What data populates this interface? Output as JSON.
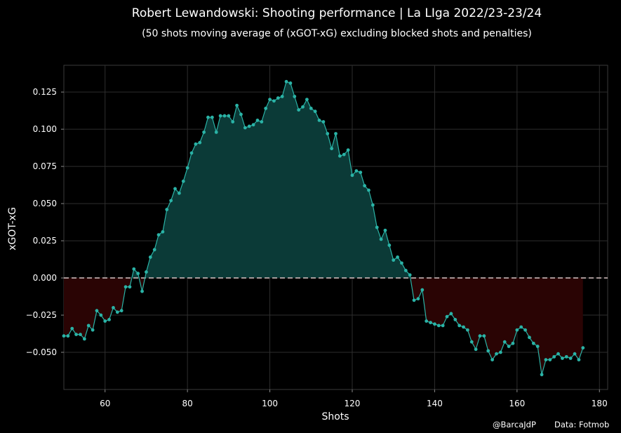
{
  "chart_data": {
    "type": "line",
    "title": "Robert Lewandowski: Shooting performance | La LIga 2022/23-23/24",
    "subtitle": "(50 shots moving average of (xGOT-xG) excluding blocked shots and penalties)",
    "xlabel": "Shots",
    "ylabel": "xGOT-xG",
    "xlim": [
      50,
      182
    ],
    "ylim": [
      -0.075,
      0.143
    ],
    "x_ticks": [
      60,
      80,
      100,
      120,
      140,
      160,
      180
    ],
    "y_ticks": [
      -0.05,
      -0.025,
      0.0,
      0.025,
      0.05,
      0.075,
      0.1,
      0.125
    ],
    "x_tick_labels": [
      "60",
      "80",
      "100",
      "120",
      "140",
      "160",
      "180"
    ],
    "y_tick_labels": [
      "−0.050",
      "−0.025",
      "0.000",
      "0.025",
      "0.050",
      "0.075",
      "0.100",
      "0.125"
    ],
    "grid": true,
    "reference_line": 0,
    "colors": {
      "background": "#000000",
      "line": "#2ab3a6",
      "marker": "#2ab3a6",
      "positive_fill": "#0b3a37",
      "negative_fill": "#2a0404",
      "zero_line": "#c9b8b8",
      "grid": "#2e2e2e"
    },
    "series": [
      {
        "x_start": 50,
        "values": [
          -0.039,
          -0.039,
          -0.034,
          -0.038,
          -0.038,
          -0.041,
          -0.032,
          -0.035,
          -0.022,
          -0.025,
          -0.029,
          -0.028,
          -0.02,
          -0.023,
          -0.022,
          -0.006,
          -0.006,
          0.006,
          0.003,
          -0.009,
          0.004,
          0.014,
          0.019,
          0.029,
          0.031,
          0.046,
          0.052,
          0.06,
          0.057,
          0.065,
          0.074,
          0.084,
          0.09,
          0.091,
          0.098,
          0.108,
          0.108,
          0.098,
          0.109,
          0.109,
          0.109,
          0.105,
          0.116,
          0.11,
          0.101,
          0.102,
          0.103,
          0.106,
          0.105,
          0.114,
          0.12,
          0.119,
          0.121,
          0.122,
          0.132,
          0.131,
          0.122,
          0.113,
          0.115,
          0.12,
          0.114,
          0.112,
          0.106,
          0.105,
          0.097,
          0.087,
          0.097,
          0.082,
          0.083,
          0.086,
          0.069,
          0.072,
          0.071,
          0.062,
          0.059,
          0.049,
          0.034,
          0.026,
          0.032,
          0.022,
          0.012,
          0.014,
          0.01,
          0.005,
          0.002,
          -0.015,
          -0.014,
          -0.008,
          -0.029,
          -0.03,
          -0.031,
          -0.032,
          -0.032,
          -0.026,
          -0.024,
          -0.028,
          -0.032,
          -0.033,
          -0.035,
          -0.043,
          -0.048,
          -0.039,
          -0.039,
          -0.049,
          -0.055,
          -0.051,
          -0.05,
          -0.043,
          -0.046,
          -0.044,
          -0.035,
          -0.033,
          -0.035,
          -0.04,
          -0.044,
          -0.046,
          -0.065,
          -0.055,
          -0.055,
          -0.053,
          -0.051,
          -0.054,
          -0.053,
          -0.054,
          -0.051,
          -0.055,
          -0.047
        ]
      }
    ]
  },
  "credits": {
    "author": "@BarcaJdP",
    "source": "Data: Fotmob"
  }
}
